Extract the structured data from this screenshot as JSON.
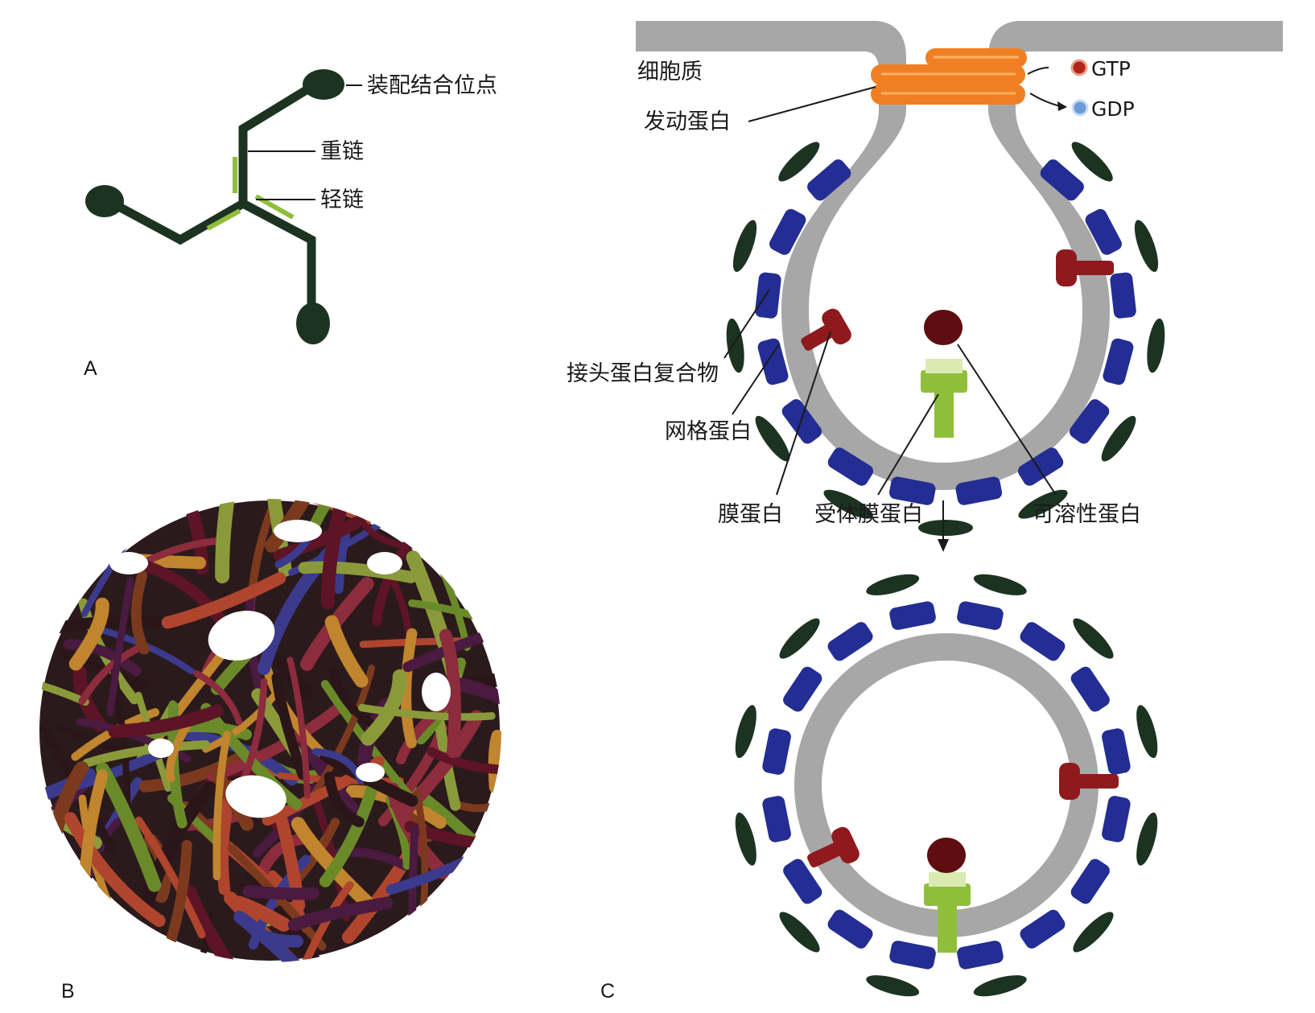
{
  "panels": {
    "a": {
      "letter": "A",
      "assembly_site": "装配结合位点",
      "heavy_chain": "重链",
      "light_chain": "轻链"
    },
    "b": {
      "letter": "B"
    },
    "c": {
      "letter": "C",
      "cytoplasm": "细胞质",
      "dynamin": "发动蛋白",
      "gtp": "GTP",
      "gdp": "GDP",
      "adaptor": "接头蛋白复合物",
      "clathrin": "网格蛋白",
      "membrane_protein": "膜蛋白",
      "receptor": "受体膜蛋白",
      "soluble_protein": "可溶性蛋白"
    }
  },
  "colors": {
    "triskelion": "#1c3321",
    "light_chain": "#8fbf3a",
    "membrane": "#a7a7a7",
    "adaptor": "#232d93",
    "clathrin": "#1c3321",
    "dynamin": "#f07f24",
    "gtp_dot": "#b3231c",
    "gdp_dot": "#6c9ad6",
    "membrane_protein": "#8e1a1e",
    "receptor": "#8fbf3a",
    "soluble": "#5e0d10",
    "cage": [
      "#2a1618",
      "#5d1426",
      "#8a9a3a",
      "#7b3a1e",
      "#3b3a8c",
      "#b0452e",
      "#6a8a2a",
      "#4a1a40",
      "#8c2c3c",
      "#c0852e"
    ]
  }
}
